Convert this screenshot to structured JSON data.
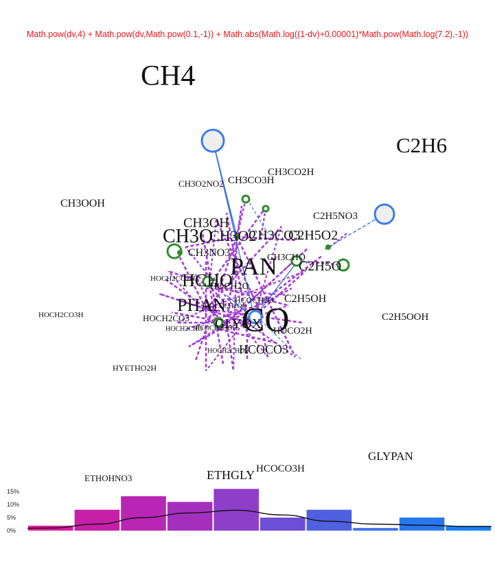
{
  "formula": "Math.pow(dv,4) + Math.pow(dv,Math.pow(0.1,-1)) + Math.abs(Math.log((1-dv)+0.00001)*Math.pow(Math.log(7.2),-1))",
  "colors": {
    "formula": "#e8151b",
    "purple_edge": "#a33fd0",
    "blue_edge": "#3a6fe0",
    "green_node": "#2e8b2e",
    "blue_node": "#3b7be8"
  },
  "labels": [
    {
      "key": "ch4",
      "text": "CH4"
    },
    {
      "key": "c2h6",
      "text": "C2H6"
    },
    {
      "key": "ch3co2h",
      "text": "CH3CO2H"
    },
    {
      "key": "ch3o2no2",
      "text": "CH3O2NO2"
    },
    {
      "key": "ch3co3h",
      "text": "CH3CO3H"
    },
    {
      "key": "ch3ooh",
      "text": "CH3OOH"
    },
    {
      "key": "c2h5no3",
      "text": "C2H5NO3"
    },
    {
      "key": "ch3oh",
      "text": "CH3OH"
    },
    {
      "key": "ch3o",
      "text": "CH3O"
    },
    {
      "key": "ch3o2",
      "text": "CH3O2"
    },
    {
      "key": "ch3co3",
      "text": "CH3CO3"
    },
    {
      "key": "c2h5o2",
      "text": "C2H5O2"
    },
    {
      "key": "ch3no3",
      "text": "CH3NO3"
    },
    {
      "key": "pan",
      "text": "PAN"
    },
    {
      "key": "ch3cho",
      "text": "CH3CHO"
    },
    {
      "key": "c2h5o",
      "text": "C2H5O"
    },
    {
      "key": "hoch2co2h",
      "text": "HOCH2CO2H"
    },
    {
      "key": "hcho",
      "text": "HCHO"
    },
    {
      "key": "hoch2o",
      "text": "HOCH2O"
    },
    {
      "key": "hcoch2o",
      "text": "HCOCH2O"
    },
    {
      "key": "c2h5oh",
      "text": "C2H5OH"
    },
    {
      "key": "phan",
      "text": "PHAN"
    },
    {
      "key": "hococh2oo",
      "text": "HOCOCH2OO"
    },
    {
      "key": "co",
      "text": "CO"
    },
    {
      "key": "hoch2co3h",
      "text": "HOCH2CO3H"
    },
    {
      "key": "hoch2co3",
      "text": "HOCH2CO3"
    },
    {
      "key": "c2h5ooh",
      "text": "C2H5OOH"
    },
    {
      "key": "hoch2cho",
      "text": "HOCH2CHO"
    },
    {
      "key": "glyox",
      "text": "GLYOX"
    },
    {
      "key": "hoco2h",
      "text": "HOCO2H"
    },
    {
      "key": "hcoch2ooh",
      "text": "HCOCH2OOH"
    },
    {
      "key": "hoch2cho2",
      "text": "HOCH2CHO2"
    },
    {
      "key": "hcoco3",
      "text": "HCOCO3"
    },
    {
      "key": "hyetho2h",
      "text": "HYETHO2H"
    },
    {
      "key": "glypan",
      "text": "GLYPAN"
    },
    {
      "key": "hcoco3h",
      "text": "HCOCO3H"
    },
    {
      "key": "ethohno3",
      "text": "ETHOHNO3"
    },
    {
      "key": "ethgly",
      "text": "ETHGLY"
    }
  ],
  "chart_data": {
    "type": "bar",
    "yticks": [
      "15%",
      "10%",
      "5%",
      "0%"
    ],
    "ylim": [
      0,
      15
    ],
    "values": [
      1.9,
      8.0,
      13.2,
      11.0,
      16.0,
      5.0,
      8.0,
      1.0,
      5.0,
      1.8
    ],
    "bar_colors": [
      "#d81e9e",
      "#c81fa8",
      "#b827b4",
      "#a530bd",
      "#8e3ec8",
      "#6d4ed6",
      "#4f60e0",
      "#3b6ee8",
      "#2778f0",
      "#1a7ff4"
    ],
    "curve": [
      1.0,
      2.5,
      5.0,
      6.8,
      7.8,
      6.0,
      3.6,
      2.5,
      2.1,
      1.6
    ]
  }
}
